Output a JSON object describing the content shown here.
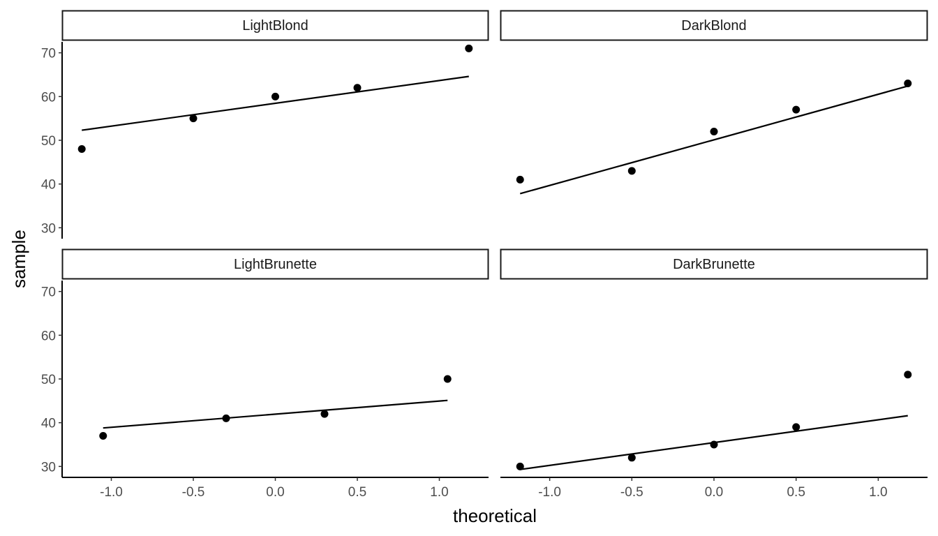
{
  "chart_data": {
    "type": "scatter",
    "layout": "facet_wrap 2x2, shared axes",
    "xlabel": "theoretical",
    "ylabel": "sample",
    "x_ticks": [
      -1.0,
      -0.5,
      0.0,
      0.5,
      1.0
    ],
    "x_tick_labels": [
      "-1.0",
      "-0.5",
      "0.0",
      "0.5",
      "1.0"
    ],
    "y_ticks": [
      30,
      40,
      50,
      60,
      70
    ],
    "y_tick_labels": [
      "30",
      "40",
      "50",
      "60",
      "70"
    ],
    "xlim": [
      -1.3,
      1.3
    ],
    "ylim": [
      27.5,
      72.5
    ],
    "grid": false,
    "point_color": "#000000",
    "line_color": "#000000",
    "panels": [
      {
        "title": "LightBlond",
        "points": [
          {
            "x": -1.18,
            "y": 48
          },
          {
            "x": -0.5,
            "y": 55
          },
          {
            "x": 0.0,
            "y": 60
          },
          {
            "x": 0.5,
            "y": 62
          },
          {
            "x": 1.18,
            "y": 71
          }
        ],
        "qq_line": [
          {
            "x": -1.18,
            "y": 52.3
          },
          {
            "x": 1.18,
            "y": 64.6
          }
        ]
      },
      {
        "title": "DarkBlond",
        "points": [
          {
            "x": -1.18,
            "y": 41
          },
          {
            "x": -0.5,
            "y": 43
          },
          {
            "x": 0.0,
            "y": 52
          },
          {
            "x": 0.5,
            "y": 57
          },
          {
            "x": 1.18,
            "y": 63
          }
        ],
        "qq_line": [
          {
            "x": -1.18,
            "y": 37.8
          },
          {
            "x": 1.18,
            "y": 62.4
          }
        ]
      },
      {
        "title": "LightBrunette",
        "points": [
          {
            "x": -1.05,
            "y": 37
          },
          {
            "x": -0.3,
            "y": 41
          },
          {
            "x": 0.3,
            "y": 42
          },
          {
            "x": 1.05,
            "y": 50
          }
        ],
        "qq_line": [
          {
            "x": -1.05,
            "y": 38.8
          },
          {
            "x": 1.05,
            "y": 45.1
          }
        ]
      },
      {
        "title": "DarkBrunette",
        "points": [
          {
            "x": -1.18,
            "y": 30
          },
          {
            "x": -0.5,
            "y": 32
          },
          {
            "x": 0.0,
            "y": 35
          },
          {
            "x": 0.5,
            "y": 39
          },
          {
            "x": 1.18,
            "y": 51
          }
        ],
        "qq_line": [
          {
            "x": -1.18,
            "y": 29.3
          },
          {
            "x": 1.18,
            "y": 41.6
          }
        ]
      }
    ]
  }
}
